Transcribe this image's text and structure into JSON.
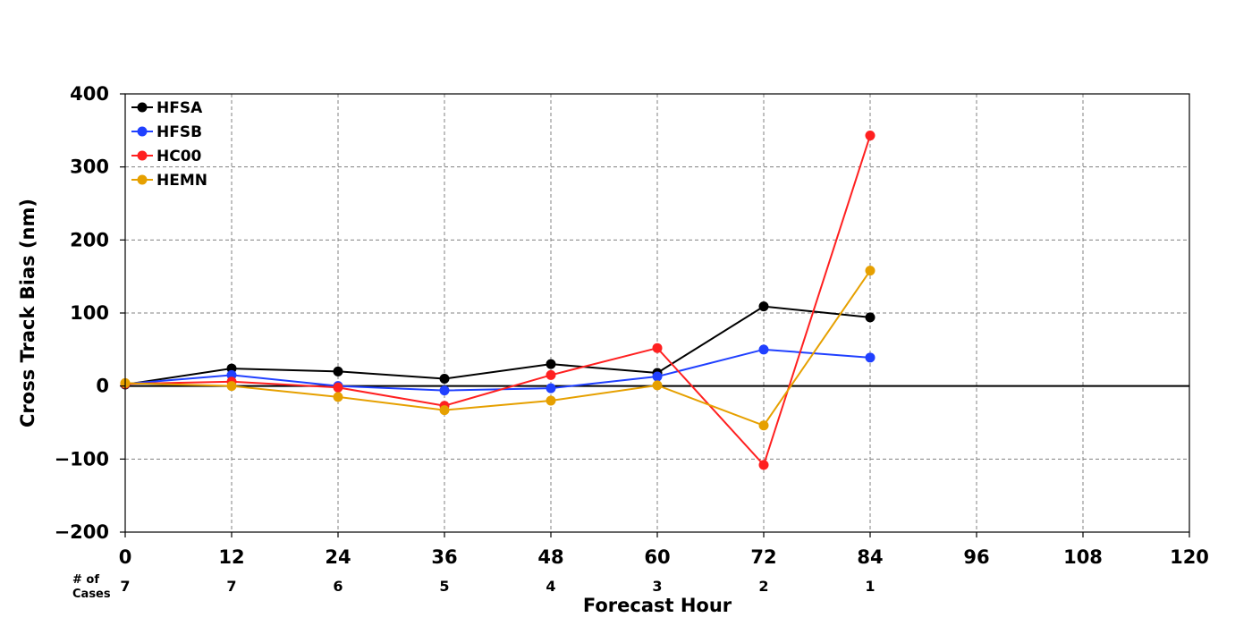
{
  "chart_data": {
    "type": "line",
    "xlabel": "Forecast Hour",
    "ylabel": "Cross Track Bias (nm)",
    "xlim": [
      0,
      120
    ],
    "ylim": [
      -200,
      400
    ],
    "x_ticks": [
      0,
      12,
      24,
      36,
      48,
      60,
      72,
      84,
      96,
      108,
      120
    ],
    "y_ticks": [
      -200,
      -100,
      0,
      100,
      200,
      300,
      400
    ],
    "y_tick_labels": [
      "−200",
      "−100",
      "0",
      "100",
      "200",
      "300",
      "400"
    ],
    "grid": true,
    "legend_position": "top-left",
    "cases_label": [
      "# of",
      "Cases"
    ],
    "cases": [
      {
        "x": 0,
        "n": "7"
      },
      {
        "x": 12,
        "n": "7"
      },
      {
        "x": 24,
        "n": "6"
      },
      {
        "x": 36,
        "n": "5"
      },
      {
        "x": 48,
        "n": "4"
      },
      {
        "x": 60,
        "n": "3"
      },
      {
        "x": 72,
        "n": "2"
      },
      {
        "x": 84,
        "n": "1"
      }
    ],
    "x": [
      0,
      12,
      24,
      36,
      48,
      60,
      72,
      84
    ],
    "series": [
      {
        "name": "HFSA",
        "color": "#000000",
        "values": [
          2,
          24,
          20,
          10,
          30,
          18,
          109,
          94
        ]
      },
      {
        "name": "HFSB",
        "color": "#2040ff",
        "values": [
          3,
          15,
          0,
          -6,
          -3,
          13,
          50,
          39
        ]
      },
      {
        "name": "HC00",
        "color": "#ff2020",
        "values": [
          3,
          6,
          -2,
          -27,
          15,
          52,
          -108,
          343
        ]
      },
      {
        "name": "HEMN",
        "color": "#e6a000",
        "values": [
          4,
          0,
          -15,
          -33,
          -20,
          1,
          -54,
          158
        ]
      }
    ]
  }
}
